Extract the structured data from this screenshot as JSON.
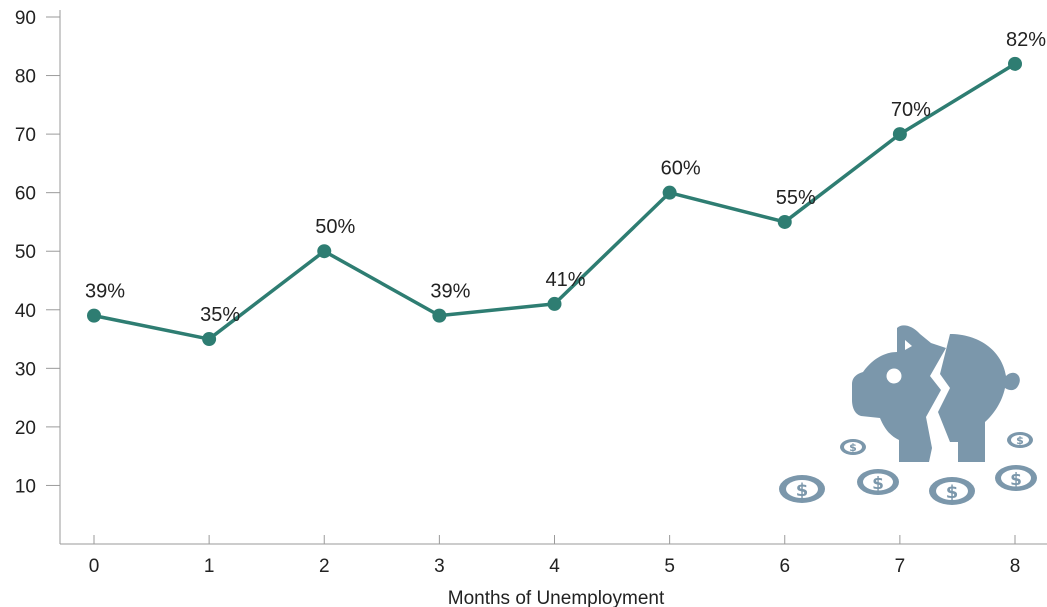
{
  "chart_data": {
    "type": "line",
    "title": "",
    "xlabel": "Months of Unemployment",
    "ylabel": "",
    "x": [
      0,
      1,
      2,
      3,
      4,
      5,
      6,
      7,
      8
    ],
    "series": [
      {
        "values": [
          39,
          35,
          50,
          39,
          41,
          60,
          55,
          70,
          82
        ],
        "labels": [
          "39%",
          "35%",
          "50%",
          "39%",
          "41%",
          "60%",
          "55%",
          "70%",
          "82%"
        ]
      }
    ],
    "yticks": [
      10,
      20,
      30,
      40,
      50,
      60,
      70,
      80,
      90
    ],
    "ylim": [
      0,
      90
    ],
    "xlim": [
      0,
      8
    ],
    "grid": false,
    "legend": "none",
    "colors": {
      "line": "#2e7d72",
      "icon": "#7b97ab",
      "axis": "#9a9a9a",
      "text": "#222222"
    },
    "decoration": "broken-piggy-bank-icon"
  }
}
